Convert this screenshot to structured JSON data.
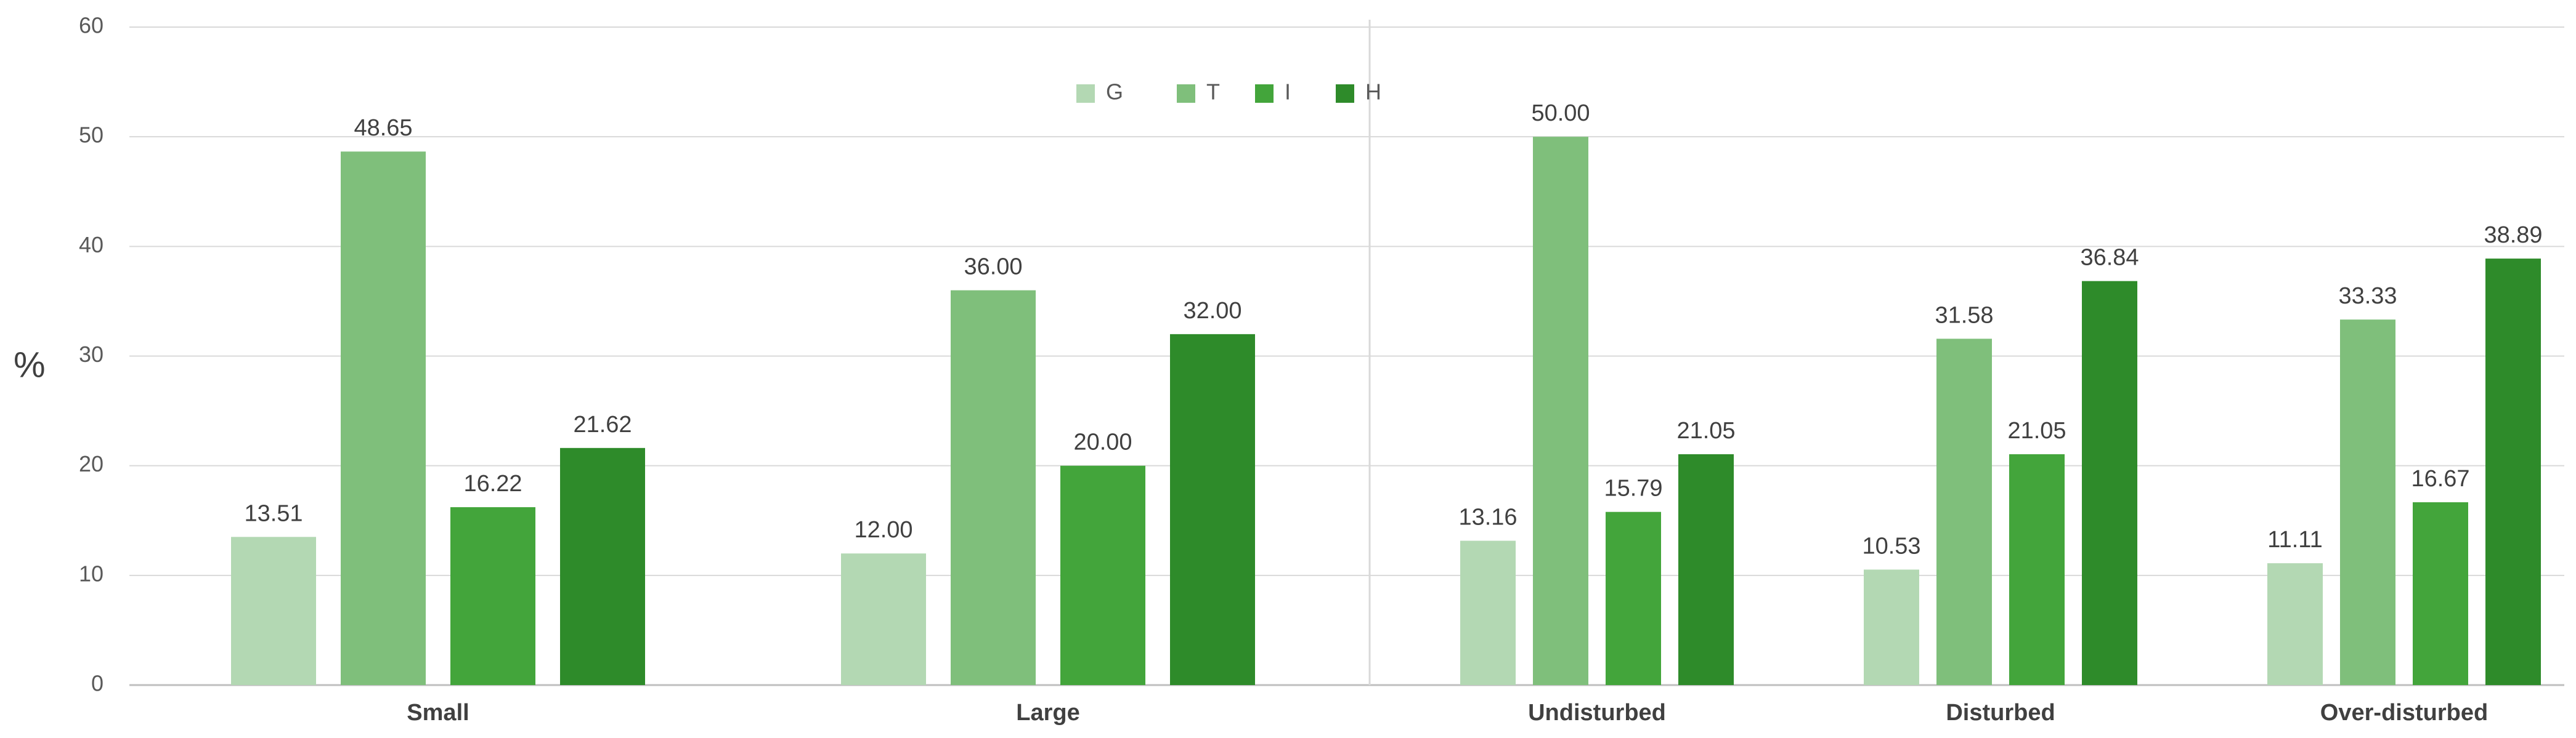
{
  "chart_data": {
    "type": "bar",
    "ylabel": "%",
    "ylim": [
      0,
      60
    ],
    "yticks": [
      "0",
      "10",
      "20",
      "30",
      "40",
      "50",
      "60"
    ],
    "grid": true,
    "legend": {
      "position": "top-right",
      "entries": [
        {
          "name": "G",
          "color": "#b3d8b3"
        },
        {
          "name": "T",
          "color": "#7fbf7b"
        },
        {
          "name": "I",
          "color": "#43a53b"
        },
        {
          "name": "H",
          "color": "#2e8b2a"
        }
      ]
    },
    "panels": [
      {
        "categories": [
          "Small",
          "Large"
        ],
        "series": [
          {
            "name": "G",
            "values": [
              13.51,
              12.0
            ],
            "labels": [
              "13.51",
              "12.00"
            ]
          },
          {
            "name": "T",
            "values": [
              48.65,
              36.0
            ],
            "labels": [
              "48.65",
              "36.00"
            ]
          },
          {
            "name": "I",
            "values": [
              16.22,
              20.0
            ],
            "labels": [
              "16.22",
              "20.00"
            ]
          },
          {
            "name": "H",
            "values": [
              21.62,
              32.0
            ],
            "labels": [
              "21.62",
              "32.00"
            ]
          }
        ]
      },
      {
        "categories": [
          "Undisturbed",
          "Disturbed",
          "Over-disturbed"
        ],
        "series": [
          {
            "name": "G",
            "values": [
              13.16,
              10.53,
              11.11
            ],
            "labels": [
              "13.16",
              "10.53",
              "11.11"
            ]
          },
          {
            "name": "T",
            "values": [
              50.0,
              31.58,
              33.33
            ],
            "labels": [
              "50.00",
              "31.58",
              "33.33"
            ]
          },
          {
            "name": "I",
            "values": [
              15.79,
              21.05,
              16.67
            ],
            "labels": [
              "15.79",
              "21.05",
              "16.67"
            ]
          },
          {
            "name": "H",
            "values": [
              21.05,
              36.84,
              38.89
            ],
            "labels": [
              "21.05",
              "36.84",
              "38.89"
            ]
          }
        ]
      }
    ]
  }
}
